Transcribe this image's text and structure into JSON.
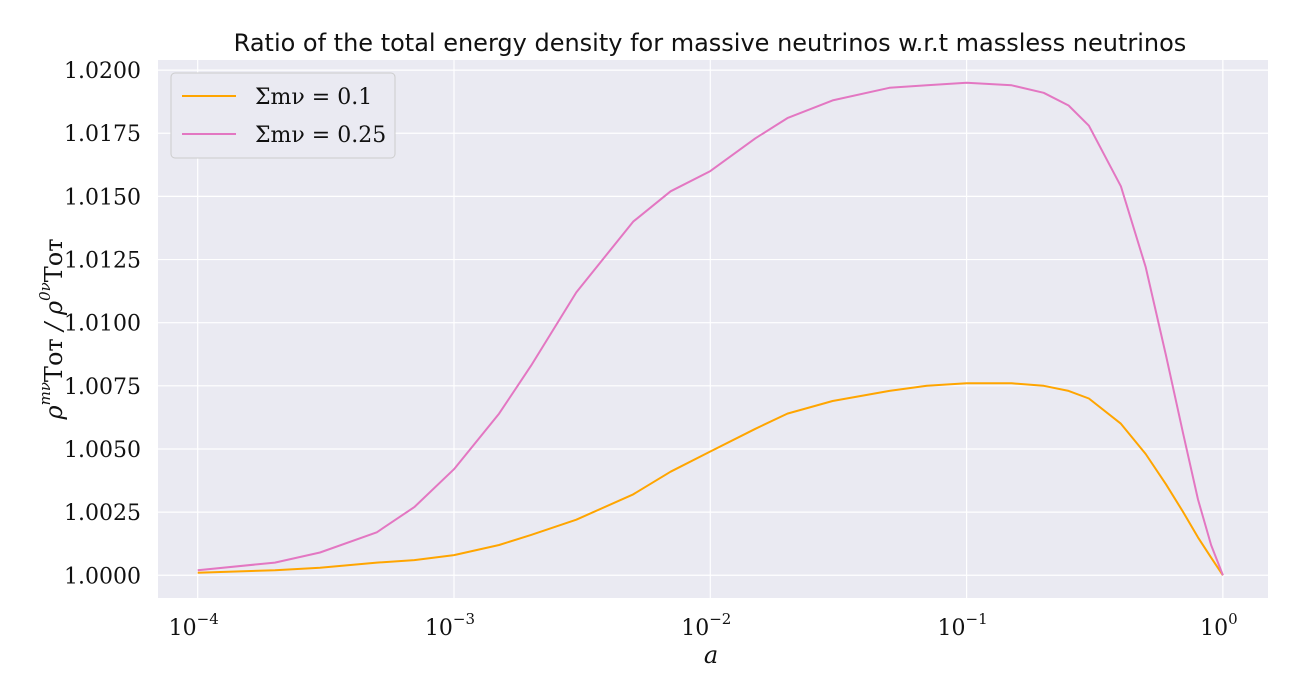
{
  "chart_data": {
    "type": "line",
    "title": "Ratio of the total energy density for massive neutrinos w.r.t massless neutrinos",
    "xlabel": "a",
    "ylabel": "ρ_Tot^{m_ν} / ρ_Tot^{0ν}",
    "x_scale": "log",
    "xlim": [
      7e-05,
      1.5
    ],
    "ylim": [
      0.9991,
      1.0204
    ],
    "x_ticks": [
      {
        "value": 0.0001,
        "base": "10",
        "exp": "−4"
      },
      {
        "value": 0.001,
        "base": "10",
        "exp": "−3"
      },
      {
        "value": 0.01,
        "base": "10",
        "exp": "−2"
      },
      {
        "value": 0.1,
        "base": "10",
        "exp": "−1"
      },
      {
        "value": 1,
        "base": "10",
        "exp": "0"
      }
    ],
    "y_ticks": [
      1.0,
      1.0025,
      1.005,
      1.0075,
      1.01,
      1.0125,
      1.015,
      1.0175,
      1.02
    ],
    "y_tick_labels": [
      "1.0000",
      "1.0025",
      "1.0050",
      "1.0075",
      "1.0100",
      "1.0125",
      "1.0150",
      "1.0175",
      "1.0200"
    ],
    "grid": true,
    "legend_position": "top-left",
    "series": [
      {
        "name": "Σm_ν = 0.1",
        "legend_label": "Σmν = 0.1",
        "color": "#FFA500",
        "x": [
          0.0001,
          0.0002,
          0.0003,
          0.0005,
          0.0007,
          0.001,
          0.0015,
          0.002,
          0.003,
          0.005,
          0.007,
          0.01,
          0.015,
          0.02,
          0.03,
          0.05,
          0.07,
          0.1,
          0.15,
          0.2,
          0.25,
          0.3,
          0.4,
          0.5,
          0.6,
          0.7,
          0.8,
          0.9,
          1.0
        ],
        "y": [
          1.0001,
          1.0002,
          1.0003,
          1.0005,
          1.0006,
          1.0008,
          1.0012,
          1.0016,
          1.0022,
          1.0032,
          1.0041,
          1.0049,
          1.0058,
          1.0064,
          1.0069,
          1.0073,
          1.0075,
          1.0076,
          1.0076,
          1.0075,
          1.0073,
          1.007,
          1.006,
          1.0048,
          1.0036,
          1.0025,
          1.0015,
          1.0007,
          1.0
        ]
      },
      {
        "name": "Σm_ν = 0.25",
        "legend_label": "Σmν = 0.25",
        "color": "#E377C2",
        "x": [
          0.0001,
          0.0002,
          0.0003,
          0.0005,
          0.0007,
          0.001,
          0.0015,
          0.002,
          0.003,
          0.005,
          0.007,
          0.01,
          0.015,
          0.02,
          0.03,
          0.05,
          0.07,
          0.1,
          0.15,
          0.2,
          0.25,
          0.3,
          0.4,
          0.5,
          0.6,
          0.7,
          0.8,
          0.9,
          1.0
        ],
        "y": [
          1.0002,
          1.0005,
          1.0009,
          1.0017,
          1.0027,
          1.0042,
          1.0064,
          1.0083,
          1.0112,
          1.014,
          1.0152,
          1.016,
          1.0173,
          1.0181,
          1.0188,
          1.0193,
          1.0194,
          1.0195,
          1.0194,
          1.0191,
          1.0186,
          1.0178,
          1.0154,
          1.0122,
          1.0087,
          1.0056,
          1.003,
          1.0012,
          1.0
        ]
      }
    ]
  }
}
